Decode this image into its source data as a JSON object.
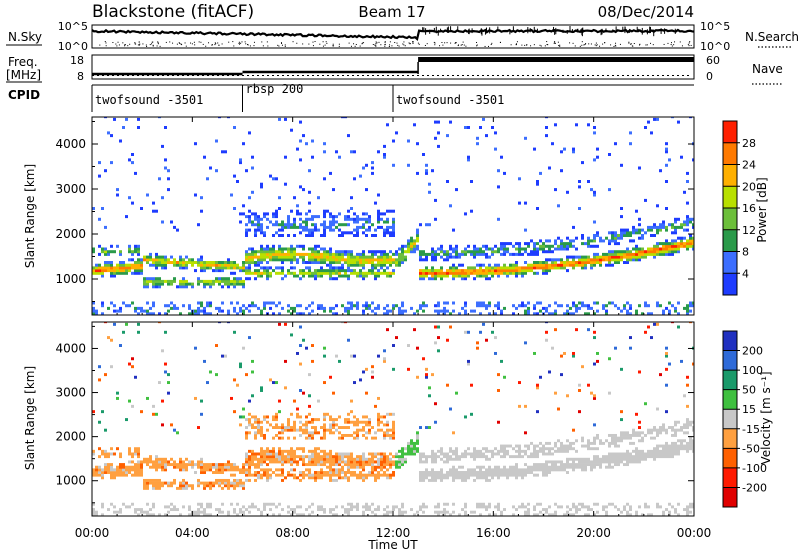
{
  "header": {
    "station": "Blackstone (fitACF)",
    "beam": "Beam 17",
    "date": "08/Dec/2014"
  },
  "noise_panel": {
    "left_label": "N.Sky",
    "right_label": "N.Search",
    "left_ticks": [
      "10^5",
      "10^0"
    ],
    "right_ticks": [
      "10^5",
      "10^0"
    ]
  },
  "freq_panel": {
    "left_label_line1": "Freq.",
    "left_label_line2": "[MHz]",
    "right_label": "Nave",
    "left_ticks": [
      "18",
      "8"
    ],
    "right_ticks": [
      "60",
      "0"
    ]
  },
  "cpid": {
    "label": "CPID",
    "segments": [
      {
        "name": "twofsound -3501",
        "start_hour": 0,
        "end_hour": 6
      },
      {
        "name": "rbsp 200",
        "start_hour": 6,
        "end_hour": 12
      },
      {
        "name": "twofsound -3501",
        "start_hour": 12,
        "end_hour": 24
      }
    ]
  },
  "chart_data": [
    {
      "type": "heatmap",
      "name": "power",
      "ylabel": "Slant Range [km]",
      "ylim": [
        200,
        4600
      ],
      "yticks": [
        "1000",
        "2000",
        "3000",
        "4000"
      ],
      "colorbar": {
        "label": "Power [dB]",
        "range": [
          0,
          32
        ],
        "ticks": [
          "4",
          "8",
          "12",
          "16",
          "20",
          "24",
          "28"
        ],
        "colors": [
          "#1e3cff",
          "#3c6eff",
          "#2a9a4a",
          "#6cbf3a",
          "#b8e000",
          "#ffb000",
          "#ff7a00",
          "#ff2000"
        ]
      }
    },
    {
      "type": "heatmap",
      "name": "velocity",
      "ylabel": "Slant Range [km]",
      "ylim": [
        200,
        4600
      ],
      "yticks": [
        "1000",
        "2000",
        "3000",
        "4000"
      ],
      "colorbar": {
        "label": "Velocity [m s⁻¹]",
        "ticks": [
          "200",
          "100",
          "50",
          "15",
          "-15",
          "-50",
          "-100",
          "-200"
        ],
        "colors": [
          "#2030c0",
          "#2e6ad8",
          "#1a9a6a",
          "#40c040",
          "#c8c8c8",
          "#ffa040",
          "#ff6000",
          "#ff1a00",
          "#e00000"
        ]
      }
    }
  ],
  "x_axis": {
    "label": "Time UT",
    "ticks": [
      "00:00",
      "04:00",
      "08:00",
      "12:00",
      "16:00",
      "20:00",
      "00:00"
    ],
    "range_hours": [
      0,
      24
    ]
  }
}
